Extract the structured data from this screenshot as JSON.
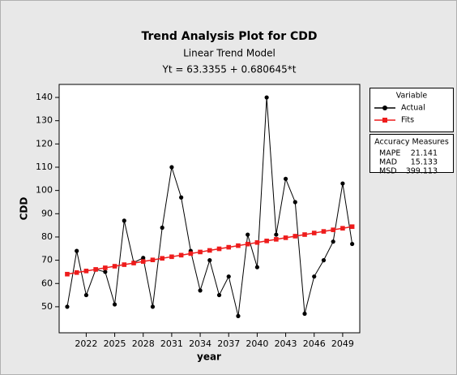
{
  "chart_data": {
    "type": "line",
    "title": "Trend Analysis Plot for CDD",
    "subtitle": "Linear Trend Model",
    "equation": "Yt = 63.3355 + 0.680645*t",
    "x_label": "year",
    "y_label": "CDD",
    "x": [
      2020,
      2021,
      2022,
      2023,
      2024,
      2025,
      2026,
      2027,
      2028,
      2029,
      2030,
      2031,
      2032,
      2033,
      2034,
      2035,
      2036,
      2037,
      2038,
      2039,
      2040,
      2041,
      2042,
      2043,
      2044,
      2045,
      2046,
      2047,
      2048,
      2049,
      2050
    ],
    "series": [
      {
        "name": "Actual",
        "color": "#000000",
        "marker": "circle",
        "values": [
          50,
          74,
          55,
          66,
          65,
          51,
          87,
          69,
          71,
          50,
          84,
          110,
          97,
          74,
          57,
          70,
          55,
          63,
          46,
          81,
          67,
          140,
          81,
          105,
          95,
          47,
          63,
          70,
          78,
          103,
          77
        ]
      },
      {
        "name": "Fits",
        "color": "#ee1c1c",
        "marker": "square",
        "values": [
          64.02,
          64.7,
          65.38,
          66.06,
          66.74,
          67.42,
          68.1,
          68.78,
          69.46,
          70.14,
          70.82,
          71.5,
          72.18,
          72.86,
          73.55,
          74.23,
          74.91,
          75.59,
          76.27,
          76.95,
          77.63,
          78.31,
          78.99,
          79.67,
          80.35,
          81.03,
          81.71,
          82.39,
          83.07,
          83.75,
          84.44
        ]
      }
    ],
    "xlim": [
      2019.15,
      2050.8
    ],
    "xticks": [
      2022,
      2025,
      2028,
      2031,
      2034,
      2037,
      2040,
      2043,
      2046,
      2049
    ],
    "ylim": [
      38.8,
      145.6
    ],
    "yticks": [
      50,
      60,
      70,
      80,
      90,
      100,
      110,
      120,
      130,
      140
    ],
    "legend_title": "Variable",
    "accuracy_measures": {
      "title": "Accuracy Measures",
      "rows": [
        {
          "label": "MAPE",
          "value": 21.141
        },
        {
          "label": "MAD",
          "value": 15.133
        },
        {
          "label": "MSD",
          "value": 399.113
        }
      ]
    }
  }
}
